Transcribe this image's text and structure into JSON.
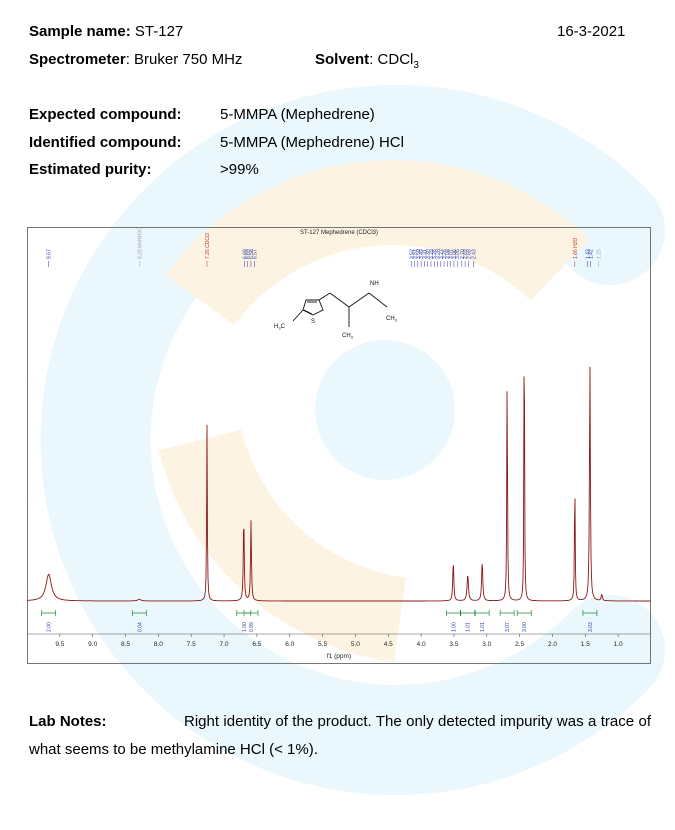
{
  "header": {
    "sample_label": "Sample name:",
    "sample_value": "ST-127",
    "date": "16-3-2021",
    "spectrometer_label": "Spectrometer",
    "spectrometer_value": ": Bruker 750 MHz",
    "solvent_label": "Solvent",
    "solvent_value": ": CDCl",
    "solvent_sub": "3"
  },
  "results": {
    "expected_label": "Expected compound:",
    "expected_value": "5-MMPA (Mephedrene)",
    "identified_label": "Identified compound:",
    "identified_value": "5-MMPA (Mephedrene) HCl",
    "purity_label": "Estimated purity:",
    "purity_value": ">99%"
  },
  "spectrum": {
    "title": "ST-127 Mephedrene (CDCl3)",
    "xlabel": "f1 (ppm)",
    "x_range": [
      10.0,
      0.5
    ],
    "ticks": [
      "9.5",
      "9.0",
      "8.5",
      "8.0",
      "7.5",
      "7.0",
      "6.5",
      "6.0",
      "5.5",
      "5.0",
      "4.5",
      "4.0",
      "3.5",
      "3.0",
      "2.5",
      "2.0",
      "1.5",
      "1.0"
    ],
    "peak_labels": [
      {
        "text": "9.67",
        "ppm": 9.67,
        "color": "#2c3aa8"
      },
      {
        "text": "8.29 MeNH3Cl",
        "ppm": 8.29,
        "color": "#9aa4b8"
      },
      {
        "text": "7.26 CDCl3",
        "ppm": 7.26,
        "color": "#c0392b"
      },
      {
        "text": "6.69",
        "ppm": 6.69,
        "color": "#2c3aa8"
      },
      {
        "text": "6.69",
        "ppm": 6.64,
        "color": "#2c3aa8"
      },
      {
        "text": "6.58",
        "ppm": 6.59,
        "color": "#2c3aa8"
      },
      {
        "text": "6.57",
        "ppm": 6.54,
        "color": "#2c3aa8"
      },
      {
        "text": "3.52",
        "ppm": 4.15,
        "color": "#2c3aa8"
      },
      {
        "text": "3.51",
        "ppm": 4.1,
        "color": "#2c3aa8"
      },
      {
        "text": "3.50",
        "ppm": 4.05,
        "color": "#2c3aa8"
      },
      {
        "text": "3.49",
        "ppm": 4.0,
        "color": "#2c3aa8"
      },
      {
        "text": "3.31",
        "ppm": 3.95,
        "color": "#2c3aa8"
      },
      {
        "text": "3.30",
        "ppm": 3.9,
        "color": "#2c3aa8"
      },
      {
        "text": "3.29",
        "ppm": 3.85,
        "color": "#2c3aa8"
      },
      {
        "text": "3.28",
        "ppm": 3.8,
        "color": "#2c3aa8"
      },
      {
        "text": "3.28",
        "ppm": 3.75,
        "color": "#2c3aa8"
      },
      {
        "text": "3.27",
        "ppm": 3.7,
        "color": "#2c3aa8"
      },
      {
        "text": "3.26",
        "ppm": 3.65,
        "color": "#2c3aa8"
      },
      {
        "text": "3.08",
        "ppm": 3.6,
        "color": "#2c3aa8"
      },
      {
        "text": "3.07",
        "ppm": 3.55,
        "color": "#2c3aa8"
      },
      {
        "text": "3.06",
        "ppm": 3.5,
        "color": "#2c3aa8"
      },
      {
        "text": "3.05",
        "ppm": 3.45,
        "color": "#2c3aa8"
      },
      {
        "text": "2.70",
        "ppm": 3.38,
        "color": "#2c3aa8"
      },
      {
        "text": "2.69",
        "ppm": 3.33,
        "color": "#2c3aa8"
      },
      {
        "text": "2.68",
        "ppm": 3.28,
        "color": "#2c3aa8"
      },
      {
        "text": "2.43",
        "ppm": 3.2,
        "color": "#2c3aa8"
      },
      {
        "text": "1.66 H2O",
        "ppm": 1.66,
        "color": "#c0392b"
      },
      {
        "text": "1.43",
        "ppm": 1.47,
        "color": "#2c3aa8"
      },
      {
        "text": "1.42",
        "ppm": 1.42,
        "color": "#2c3aa8"
      },
      {
        "text": "1.25",
        "ppm": 1.3,
        "color": "#9aa4b8"
      }
    ],
    "peaks": [
      {
        "ppm": 9.67,
        "height": 0.08,
        "width": 0.05
      },
      {
        "ppm": 8.29,
        "height": 0.005,
        "width": 0.03
      },
      {
        "ppm": 7.26,
        "height": 0.53,
        "width": 0.006
      },
      {
        "ppm": 6.7,
        "height": 0.26,
        "width": 0.008
      },
      {
        "ppm": 6.59,
        "height": 0.24,
        "width": 0.008
      },
      {
        "ppm": 3.51,
        "height": 0.12,
        "width": 0.009
      },
      {
        "ppm": 3.29,
        "height": 0.08,
        "width": 0.012
      },
      {
        "ppm": 3.07,
        "height": 0.12,
        "width": 0.01
      },
      {
        "ppm": 2.69,
        "height": 0.72,
        "width": 0.006
      },
      {
        "ppm": 2.43,
        "height": 1.0,
        "width": 0.005
      },
      {
        "ppm": 1.66,
        "height": 0.38,
        "width": 0.006
      },
      {
        "ppm": 1.43,
        "height": 0.72,
        "width": 0.008
      },
      {
        "ppm": 1.25,
        "height": 0.02,
        "width": 0.01
      }
    ],
    "integrals": [
      {
        "text": "2.00",
        "ppm": 9.67,
        "color": "#2c3aa8"
      },
      {
        "text": "0.04",
        "ppm": 8.29,
        "color": "#2c3aa8"
      },
      {
        "text": "1.00",
        "ppm": 6.7,
        "color": "#2c3aa8"
      },
      {
        "text": "0.99",
        "ppm": 6.59,
        "color": "#2c3aa8"
      },
      {
        "text": "1.00",
        "ppm": 3.51,
        "color": "#2c3aa8"
      },
      {
        "text": "1.01",
        "ppm": 3.29,
        "color": "#2c3aa8"
      },
      {
        "text": "1.01",
        "ppm": 3.07,
        "color": "#2c3aa8"
      },
      {
        "text": "3.07",
        "ppm": 2.69,
        "color": "#2c3aa8"
      },
      {
        "text": "3.00",
        "ppm": 2.43,
        "color": "#2c3aa8"
      },
      {
        "text": "3.03",
        "ppm": 1.43,
        "color": "#2c3aa8"
      }
    ],
    "structure": {
      "nh": "NH",
      "ch3_n": "CH",
      "ch3_n_sub": "3",
      "h3c": "H",
      "h3c_sub": "3",
      "h3c_c": "C",
      "s": "S",
      "ch3_b": "CH",
      "ch3_b_sub": "3"
    }
  },
  "notes": {
    "label": "Lab Notes:",
    "text": "Right identity of the product. The only detected impurity was a trace of what seems to be methylamine HCl (< 1%)."
  },
  "colors": {
    "watermark_cyan": "#eaf7fd",
    "watermark_orange": "#fdf3e3",
    "spectrum_line": "#8b1a1a",
    "integral_green": "#1f8a3c"
  }
}
